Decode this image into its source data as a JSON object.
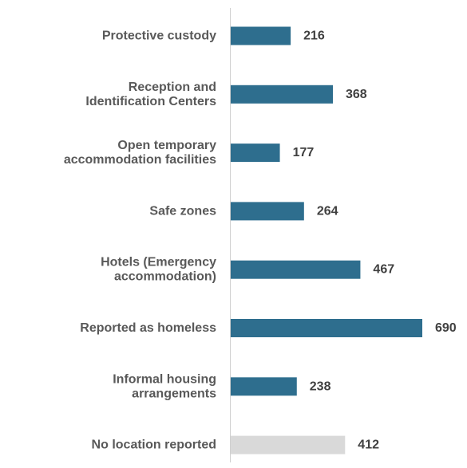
{
  "chart_data": {
    "type": "bar",
    "orientation": "horizontal",
    "categories": [
      [
        "Protective custody"
      ],
      [
        "Reception and",
        "Identification Centers"
      ],
      [
        "Open temporary",
        "accommodation facilities"
      ],
      [
        "Safe zones"
      ],
      [
        "Hotels (Emergency",
        "accommodation)"
      ],
      [
        "Reported as homeless"
      ],
      [
        "Informal housing",
        "arrangements"
      ],
      [
        "No location reported"
      ]
    ],
    "values": [
      216,
      368,
      177,
      264,
      467,
      690,
      238,
      412
    ],
    "value_labels": [
      "216",
      "368",
      "177",
      "264",
      "467",
      "690",
      "238",
      "412"
    ],
    "bar_colors": [
      "#2e6e8e",
      "#2e6e8e",
      "#2e6e8e",
      "#2e6e8e",
      "#2e6e8e",
      "#2e6e8e",
      "#2e6e8e",
      "#d9d9d9"
    ],
    "xlim": [
      0,
      690
    ],
    "grid": false,
    "legend": "none"
  },
  "colors": {
    "primary_bar": "#2e6e8e",
    "unreported_bar": "#d9d9d9",
    "axis_line": "#d0d0d0"
  }
}
